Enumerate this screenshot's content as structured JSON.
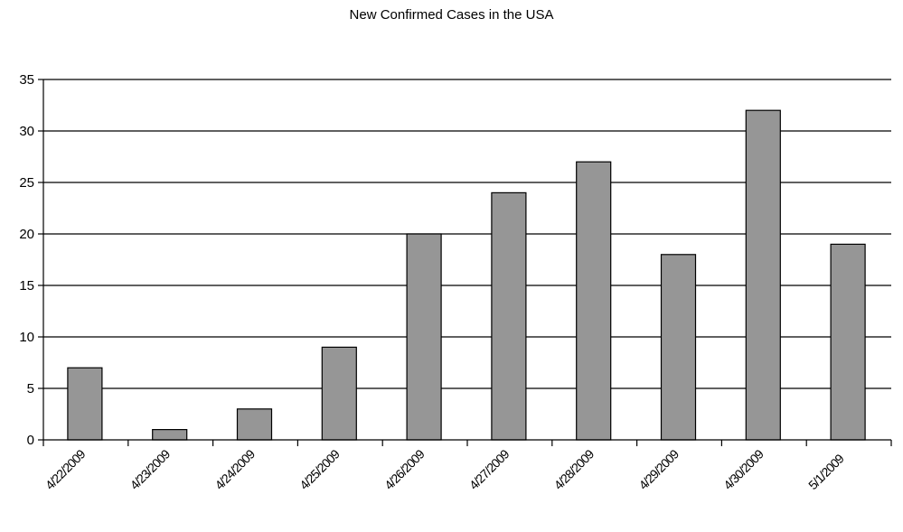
{
  "chart_data": {
    "type": "bar",
    "title": "New Confirmed Cases in the USA",
    "xlabel": "",
    "ylabel": "",
    "categories": [
      "4/22/2009",
      "4/23/2009",
      "4/24/2009",
      "4/25/2009",
      "4/26/2009",
      "4/27/2009",
      "4/28/2009",
      "4/29/2009",
      "4/30/2009",
      "5/1/2009"
    ],
    "values": [
      7,
      1,
      3,
      9,
      20,
      24,
      27,
      18,
      32,
      19
    ],
    "ylim": [
      0,
      35
    ],
    "yticks": [
      0,
      5,
      10,
      15,
      20,
      25,
      30,
      35
    ],
    "grid": true,
    "legend": "none",
    "bar_color": "#969696"
  }
}
